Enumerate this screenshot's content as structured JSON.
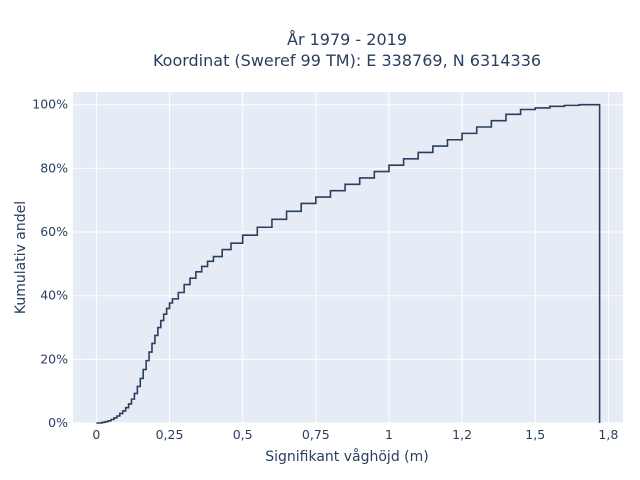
{
  "chart_data": {
    "type": "line",
    "line_shape": "step",
    "title_line1": "År 1979 - 2019",
    "title_line2": "Koordinat (Sweref 99 TM): E 338769, N 6314336",
    "xlabel": "Signifikant våghöjd (m)",
    "ylabel": "Kumulativ andel",
    "xlim": [
      -0.08,
      1.8
    ],
    "ylim": [
      0,
      1.04
    ],
    "x_ticks": [
      0,
      0.25,
      0.5,
      0.75,
      1,
      1.25,
      1.5,
      1.75
    ],
    "x_tick_labels": [
      "0",
      "0,25",
      "0,5",
      "0,75",
      "1",
      "1,2",
      "1,5",
      "1,8"
    ],
    "y_ticks": [
      0,
      0.2,
      0.4,
      0.6,
      0.8,
      1.0
    ],
    "y_tick_labels": [
      "0%",
      "20%",
      "40%",
      "60%",
      "80%",
      "100%"
    ],
    "grid": true,
    "colors": {
      "plot_bg": "#e5ecf6",
      "grid": "#ffffff",
      "line": "#2a3f5f",
      "text": "#2a3f5f"
    },
    "x": [
      0.0,
      0.01,
      0.02,
      0.03,
      0.04,
      0.05,
      0.06,
      0.07,
      0.08,
      0.09,
      0.1,
      0.11,
      0.12,
      0.13,
      0.14,
      0.15,
      0.16,
      0.17,
      0.18,
      0.19,
      0.2,
      0.21,
      0.22,
      0.23,
      0.24,
      0.25,
      0.26,
      0.28,
      0.3,
      0.32,
      0.34,
      0.36,
      0.38,
      0.4,
      0.43,
      0.46,
      0.5,
      0.55,
      0.6,
      0.65,
      0.7,
      0.75,
      0.8,
      0.85,
      0.9,
      0.95,
      1.0,
      1.05,
      1.1,
      1.15,
      1.2,
      1.25,
      1.3,
      1.35,
      1.4,
      1.45,
      1.5,
      1.55,
      1.6,
      1.65,
      1.7,
      1.72,
      1.72
    ],
    "y": [
      0.0,
      0.0,
      0.002,
      0.004,
      0.007,
      0.011,
      0.016,
      0.022,
      0.03,
      0.038,
      0.048,
      0.06,
      0.075,
      0.093,
      0.115,
      0.14,
      0.168,
      0.196,
      0.223,
      0.25,
      0.275,
      0.3,
      0.322,
      0.342,
      0.36,
      0.377,
      0.39,
      0.41,
      0.435,
      0.455,
      0.475,
      0.492,
      0.508,
      0.523,
      0.545,
      0.565,
      0.59,
      0.615,
      0.64,
      0.665,
      0.69,
      0.71,
      0.73,
      0.75,
      0.77,
      0.79,
      0.81,
      0.83,
      0.85,
      0.87,
      0.89,
      0.91,
      0.93,
      0.95,
      0.97,
      0.985,
      0.99,
      0.995,
      0.998,
      1.0,
      1.0,
      1.0,
      0.0
    ]
  }
}
